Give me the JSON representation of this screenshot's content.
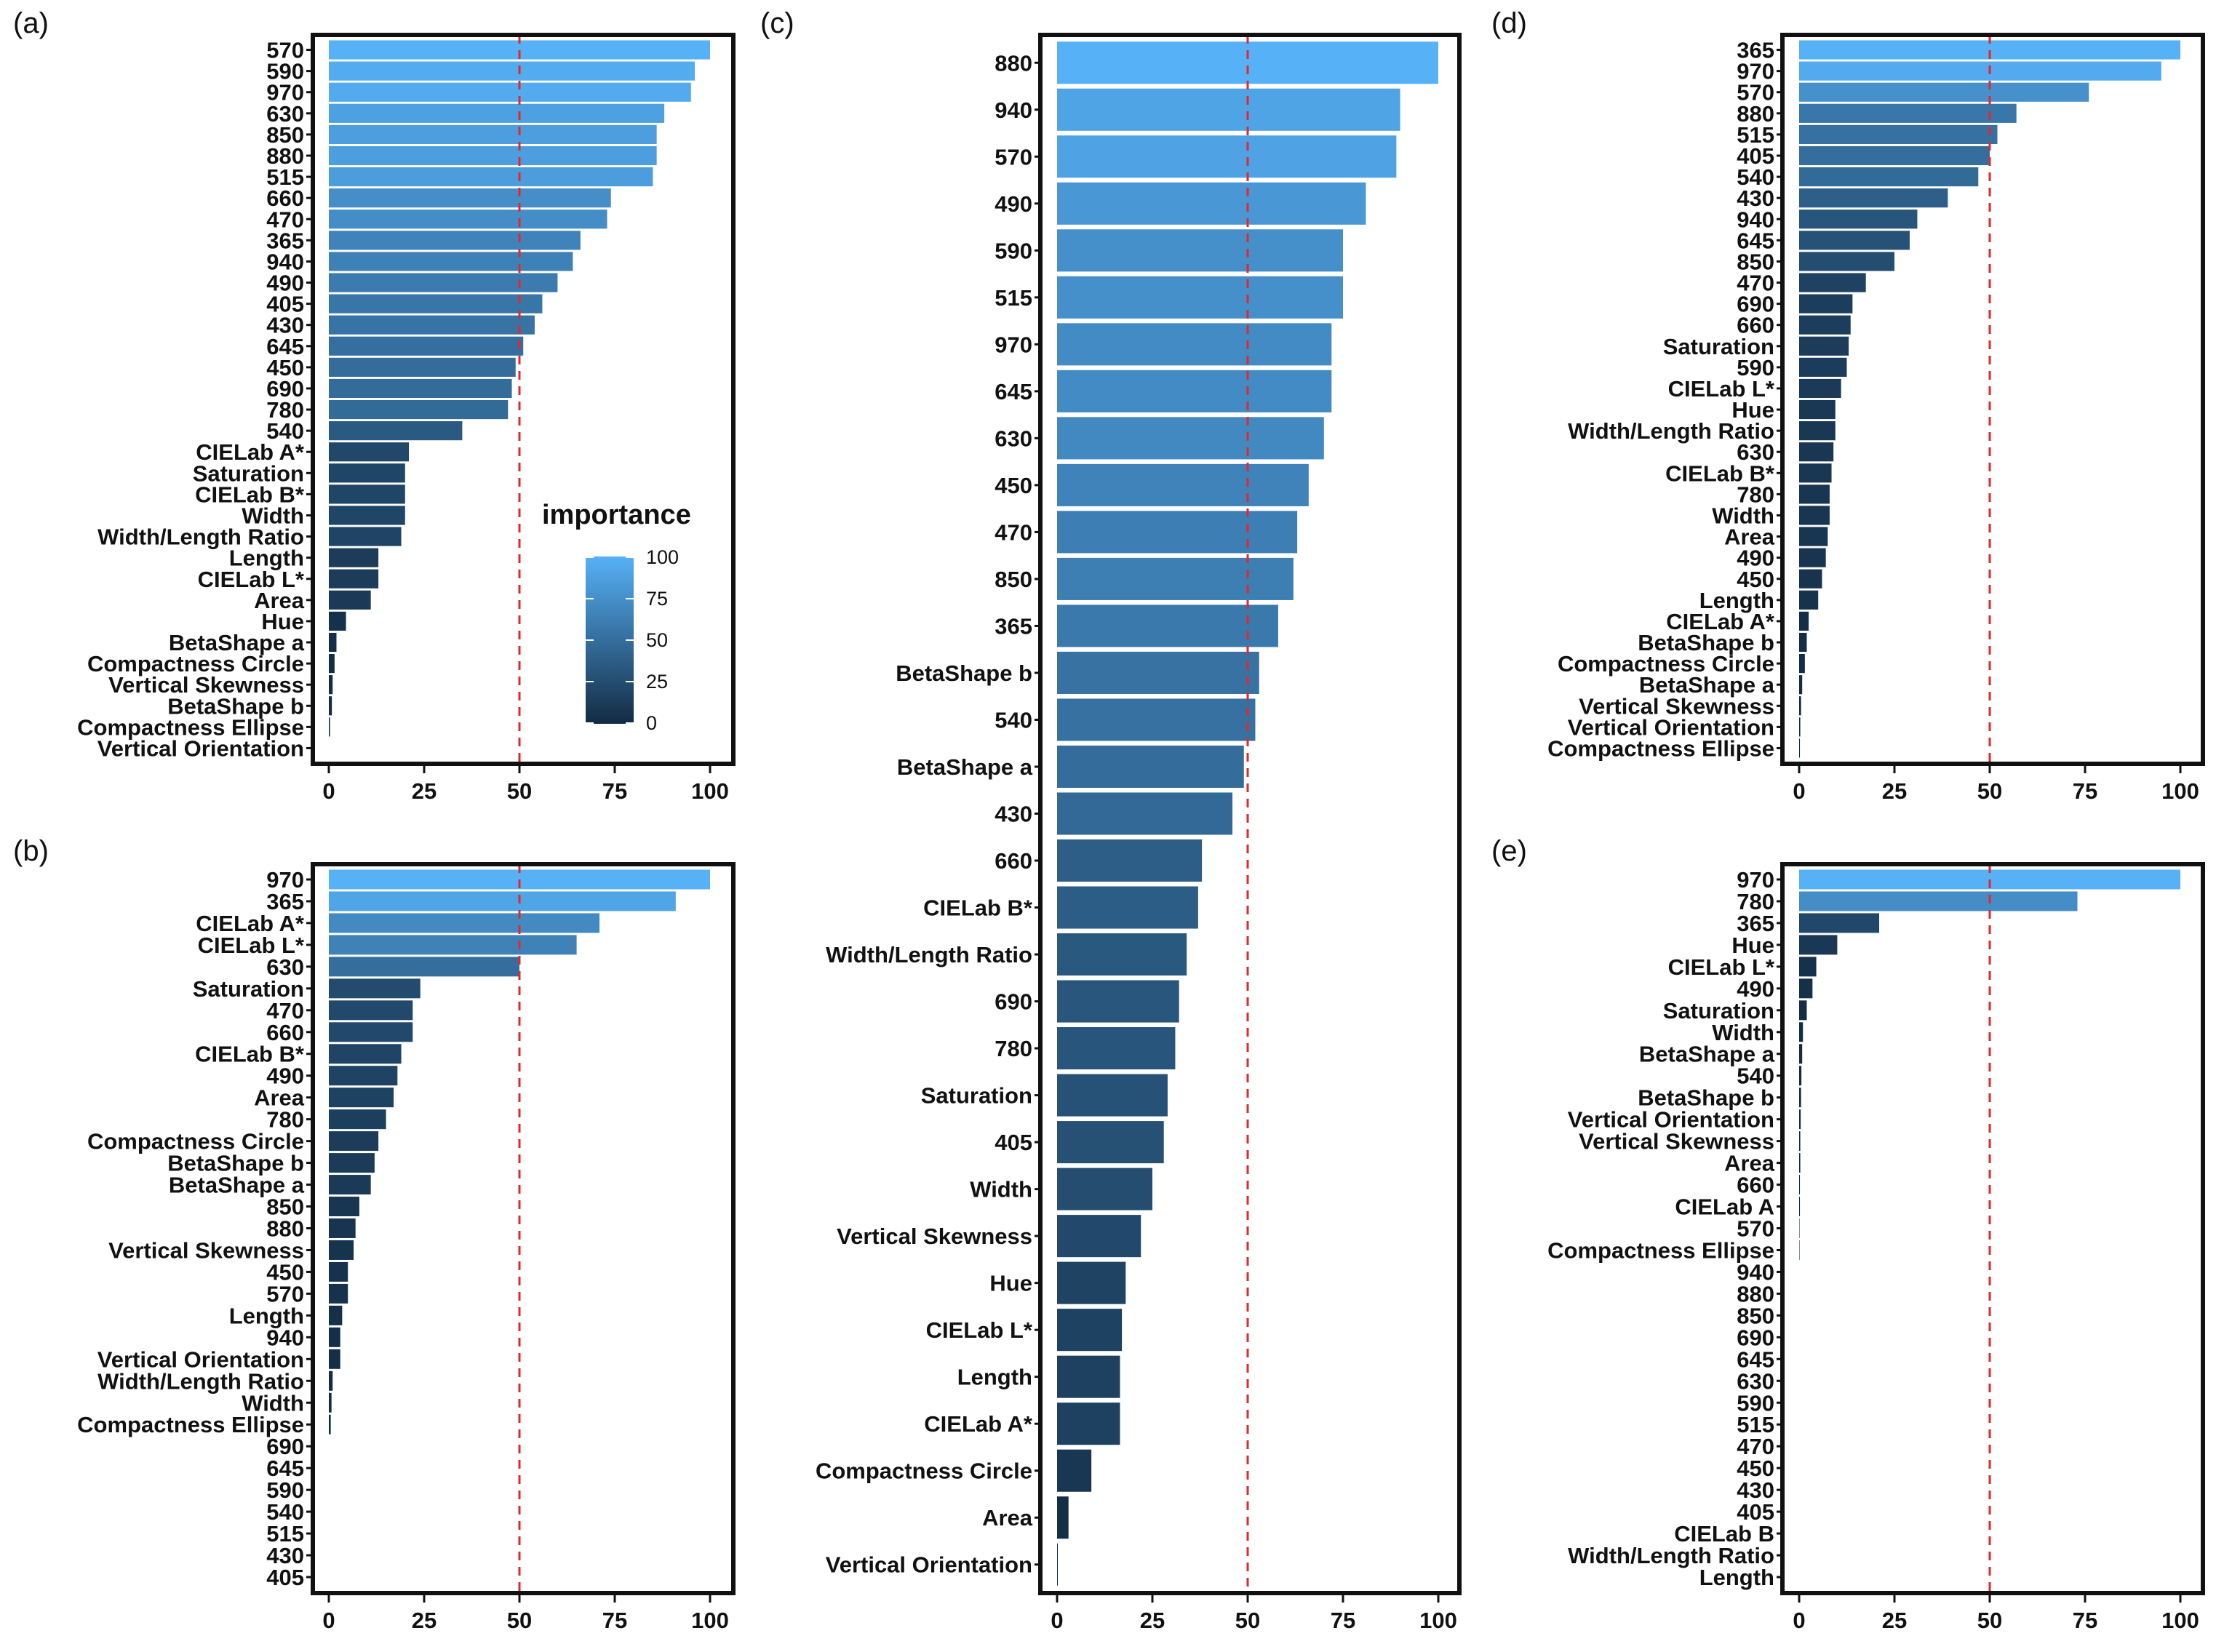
{
  "figure": {
    "legend": {
      "title": "importance",
      "ticks": [
        "100",
        "75",
        "50",
        "25",
        "0"
      ]
    }
  },
  "colors": {
    "low": "#132b43",
    "high": "#56b1f7",
    "reference_line": "#e8262a",
    "axis": "#111111"
  },
  "chart_data": [
    {
      "panel": "(a)",
      "type": "bar",
      "orientation": "horizontal",
      "xlim": [
        0,
        100
      ],
      "x_ticks": [
        "0",
        "25",
        "50",
        "75",
        "100"
      ],
      "reference_line": 50,
      "categories": [
        "570",
        "590",
        "970",
        "630",
        "850",
        "880",
        "515",
        "660",
        "470",
        "365",
        "940",
        "490",
        "405",
        "430",
        "645",
        "450",
        "690",
        "780",
        "540",
        "CIELab A*",
        "Saturation",
        "CIELab B*",
        "Width",
        "Width/Length Ratio",
        "Length",
        "CIELab L*",
        "Area",
        "Hue",
        "BetaShape a",
        "Compactness Circle",
        "Vertical Skewness",
        "BetaShape b",
        "Compactness Ellipse",
        "Vertical Orientation"
      ],
      "values": [
        100,
        96,
        95,
        88,
        86,
        86,
        85,
        74,
        73,
        66,
        64,
        60,
        56,
        54,
        51,
        49,
        48,
        47,
        35,
        21,
        20,
        20,
        20,
        19,
        13,
        13,
        11,
        4.5,
        2,
        1.5,
        1,
        0.8,
        0.3,
        0
      ]
    },
    {
      "panel": "(b)",
      "type": "bar",
      "orientation": "horizontal",
      "xlim": [
        0,
        100
      ],
      "x_ticks": [
        "0",
        "25",
        "50",
        "75",
        "100"
      ],
      "reference_line": 50,
      "categories": [
        "970",
        "365",
        "CIELab A*",
        "CIELab L*",
        "630",
        "Saturation",
        "470",
        "660",
        "CIELab B*",
        "490",
        "Area",
        "780",
        "Compactness Circle",
        "BetaShape b",
        "BetaShape a",
        "850",
        "880",
        "Vertical Skewness",
        "450",
        "570",
        "Length",
        "940",
        "Vertical Orientation",
        "Width/Length Ratio",
        "Width",
        "Compactness Ellipse",
        "690",
        "645",
        "590",
        "540",
        "515",
        "430",
        "405"
      ],
      "values": [
        100,
        91,
        71,
        65,
        50,
        24,
        22,
        22,
        19,
        18,
        17,
        15,
        13,
        12,
        11,
        8,
        7,
        6.5,
        5,
        5,
        3.5,
        3,
        3,
        1,
        0.7,
        0.5,
        0,
        0,
        0,
        0,
        0,
        0,
        0
      ]
    },
    {
      "panel": "(c)",
      "type": "bar",
      "orientation": "horizontal",
      "xlim": [
        0,
        100
      ],
      "x_ticks": [
        "0",
        "25",
        "50",
        "75",
        "100"
      ],
      "reference_line": 50,
      "categories": [
        "880",
        "940",
        "570",
        "490",
        "590",
        "515",
        "970",
        "645",
        "630",
        "450",
        "470",
        "850",
        "365",
        "BetaShape b",
        "540",
        "BetaShape a",
        "430",
        "660",
        "CIELab B*",
        "Width/Length Ratio",
        "690",
        "780",
        "Saturation",
        "405",
        "Width",
        "Vertical Skewness",
        "Hue",
        "CIELab L*",
        "Length",
        "CIELab A*",
        "Compactness Circle",
        "Area",
        "Vertical Orientation"
      ],
      "values": [
        100,
        90,
        89,
        81,
        75,
        75,
        72,
        72,
        70,
        66,
        63,
        62,
        58,
        53,
        52,
        49,
        46,
        38,
        37,
        34,
        32,
        31,
        29,
        28,
        25,
        22,
        18,
        17,
        16.5,
        16.5,
        9,
        3,
        0.2
      ]
    },
    {
      "panel": "(d)",
      "type": "bar",
      "orientation": "horizontal",
      "xlim": [
        0,
        100
      ],
      "x_ticks": [
        "0",
        "25",
        "50",
        "75",
        "100"
      ],
      "reference_line": 50,
      "categories": [
        "365",
        "970",
        "570",
        "880",
        "515",
        "405",
        "540",
        "430",
        "940",
        "645",
        "850",
        "470",
        "690",
        "660",
        "Saturation",
        "590",
        "CIELab L*",
        "Hue",
        "Width/Length Ratio",
        "630",
        "CIELab B*",
        "780",
        "Width",
        "Area",
        "490",
        "450",
        "Length",
        "CIELab A*",
        "BetaShape b",
        "Compactness Circle",
        "BetaShape a",
        "Vertical Skewness",
        "Vertical Orientation",
        "Compactness Ellipse"
      ],
      "values": [
        100,
        95,
        76,
        57,
        52,
        50,
        47,
        39,
        31,
        29,
        25,
        17.5,
        14,
        13.5,
        13,
        12.5,
        11,
        9.5,
        9.5,
        9,
        8.5,
        8,
        8,
        7.5,
        7,
        6,
        5,
        2.5,
        2,
        1.5,
        0.8,
        0.5,
        0.3,
        0.2
      ]
    },
    {
      "panel": "(e)",
      "type": "bar",
      "orientation": "horizontal",
      "xlim": [
        0,
        100
      ],
      "x_ticks": [
        "0",
        "25",
        "50",
        "75",
        "100"
      ],
      "reference_line": 50,
      "categories": [
        "970",
        "780",
        "365",
        "Hue",
        "CIELab L*",
        "490",
        "Saturation",
        "Width",
        "BetaShape a",
        "540",
        "BetaShape b",
        "Vertical Orientation",
        "Vertical Skewness",
        "Area",
        "660",
        "CIELab A",
        "570",
        "Compactness Ellipse",
        "940",
        "880",
        "850",
        "690",
        "645",
        "630",
        "590",
        "515",
        "470",
        "450",
        "430",
        "405",
        "CIELab B",
        "Width/Length Ratio",
        "Length"
      ],
      "values": [
        100,
        73,
        21,
        10,
        4.5,
        3.5,
        2,
        1,
        0.8,
        0.6,
        0.5,
        0.4,
        0.3,
        0.3,
        0.2,
        0.2,
        0.1,
        0.1,
        0,
        0,
        0,
        0,
        0,
        0,
        0,
        0,
        0,
        0,
        0,
        0,
        0,
        0,
        0
      ]
    }
  ]
}
